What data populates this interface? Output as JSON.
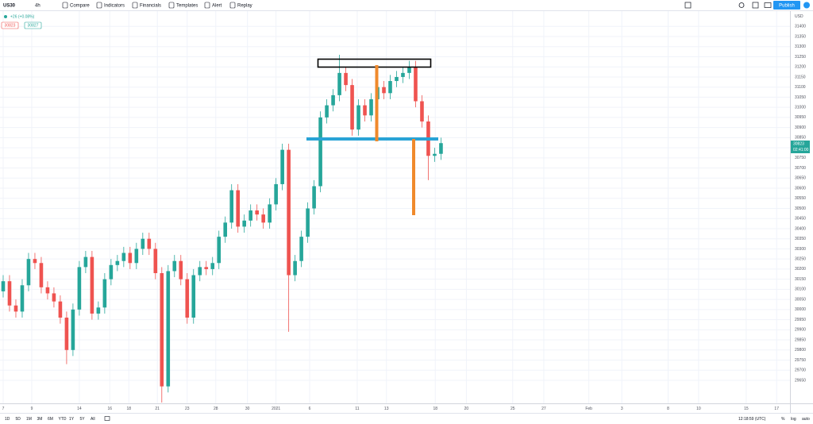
{
  "toolbar": {
    "symbol": "US30",
    "interval": "4h",
    "buttons": [
      "Compare",
      "Indicators",
      "Financials",
      "Templates",
      "Alert",
      "Replay"
    ],
    "publish": "Publish"
  },
  "legend": {
    "change": "+26 (+0.08%)",
    "bid": "30823",
    "ask": "30827"
  },
  "axis_currency": "USD",
  "price_label": "30823",
  "countdown": "02:41:00",
  "bottom_bar": {
    "ranges": [
      "1D",
      "5D",
      "1M",
      "3M",
      "6M",
      "YTD",
      "1Y",
      "5Y",
      "All"
    ],
    "time": "12:18:59 (UTC)",
    "options": [
      "%",
      "log",
      "auto"
    ]
  },
  "chart_data": {
    "type": "candlestick",
    "x": [
      0,
      1,
      2,
      3,
      4,
      5,
      6,
      7,
      8,
      9,
      10,
      11,
      12,
      13,
      14,
      15,
      16,
      17,
      18,
      19,
      20,
      21,
      22,
      23,
      24,
      25,
      26,
      27,
      28,
      29,
      30,
      31,
      32,
      33,
      34,
      35,
      36,
      37,
      38,
      39,
      40,
      41,
      42,
      43,
      44,
      45,
      46,
      47,
      48,
      49,
      50,
      51,
      52,
      53,
      54,
      55,
      56,
      57,
      58,
      59,
      60,
      61,
      62,
      63,
      64,
      65,
      66,
      67,
      68,
      69
    ],
    "open": [
      30090,
      30140,
      30020,
      29990,
      30120,
      30250,
      30230,
      30110,
      30080,
      30040,
      29960,
      29800,
      30000,
      30210,
      30260,
      29980,
      30010,
      30150,
      30220,
      30240,
      30280,
      30230,
      30300,
      30350,
      30300,
      30180,
      29620,
      30190,
      30240,
      30150,
      29960,
      30170,
      30210,
      30200,
      30230,
      30360,
      30430,
      30590,
      30410,
      30440,
      30490,
      30470,
      30430,
      30520,
      30620,
      30790,
      30170,
      30240,
      30360,
      30500,
      30610,
      30950,
      31010,
      31060,
      31170,
      31110,
      30890,
      31010,
      30960,
      31040,
      31100,
      31070,
      31130,
      31150,
      31170,
      31200,
      31030,
      30930,
      30760,
      30770
    ],
    "high": [
      30170,
      30170,
      30050,
      30150,
      30280,
      30280,
      30260,
      30140,
      30110,
      30070,
      29990,
      30030,
      30240,
      30290,
      30290,
      30040,
      30180,
      30250,
      30270,
      30310,
      30310,
      30330,
      30380,
      30380,
      30330,
      30210,
      30220,
      30270,
      30270,
      30180,
      30200,
      30240,
      30240,
      30260,
      30390,
      30460,
      30620,
      30620,
      30470,
      30520,
      30520,
      30500,
      30550,
      30650,
      30820,
      30820,
      30270,
      30390,
      30530,
      30640,
      30980,
      31040,
      31090,
      31260,
      31200,
      31140,
      31040,
      31040,
      31070,
      31130,
      31130,
      31160,
      31180,
      31200,
      31230,
      31230,
      31060,
      30960,
      30800,
      30850
    ],
    "low": [
      30060,
      29990,
      29960,
      29960,
      30090,
      30200,
      30080,
      30050,
      30010,
      29930,
      29730,
      29770,
      29970,
      30180,
      29950,
      29950,
      29980,
      30120,
      30190,
      30210,
      30200,
      30200,
      30270,
      30270,
      30150,
      29540,
      29590,
      30160,
      30120,
      29930,
      29930,
      30140,
      30170,
      30170,
      30200,
      30330,
      30400,
      30380,
      30380,
      30410,
      30440,
      30400,
      30400,
      30490,
      30590,
      29890,
      30140,
      30210,
      30330,
      30470,
      30580,
      30920,
      30980,
      31030,
      31080,
      30860,
      30860,
      30930,
      30930,
      31010,
      31040,
      31040,
      31100,
      31120,
      31140,
      31000,
      30900,
      30640,
      30730,
      30740
    ],
    "close": [
      30140,
      30020,
      29990,
      30120,
      30250,
      30230,
      30110,
      30080,
      30040,
      29960,
      29800,
      30000,
      30210,
      30260,
      29980,
      30010,
      30150,
      30220,
      30240,
      30280,
      30230,
      30300,
      30350,
      30300,
      30180,
      29620,
      30190,
      30240,
      30150,
      29960,
      30170,
      30210,
      30200,
      30230,
      30360,
      30430,
      30590,
      30410,
      30440,
      30490,
      30470,
      30430,
      30520,
      30620,
      30790,
      30170,
      30240,
      30360,
      30500,
      30610,
      30950,
      31010,
      31060,
      31170,
      31110,
      30890,
      31010,
      30960,
      31040,
      31100,
      31070,
      31130,
      31150,
      31170,
      31200,
      31030,
      30930,
      30760,
      30770,
      30823
    ],
    "up_color": "#26a69a",
    "down_color": "#ef5350",
    "grid": true,
    "xlim": [
      -0.5,
      124
    ],
    "xticks": [
      {
        "value": 0,
        "label": "7"
      },
      {
        "value": 4.5,
        "label": "9"
      },
      {
        "value": 12,
        "label": "14"
      },
      {
        "value": 16.8,
        "label": "16"
      },
      {
        "value": 19.8,
        "label": "18"
      },
      {
        "value": 24.3,
        "label": "21"
      },
      {
        "value": 29,
        "label": "23"
      },
      {
        "value": 33.5,
        "label": "28"
      },
      {
        "value": 38.5,
        "label": "30"
      },
      {
        "value": 43,
        "label": "2021"
      },
      {
        "value": 48.3,
        "label": "6"
      },
      {
        "value": 55.8,
        "label": "11"
      },
      {
        "value": 60.4,
        "label": "13"
      },
      {
        "value": 68.1,
        "label": "18"
      },
      {
        "value": 73,
        "label": "20"
      },
      {
        "value": 80.3,
        "label": "25"
      },
      {
        "value": 85.2,
        "label": "27"
      },
      {
        "value": 92.3,
        "label": "Feb"
      },
      {
        "value": 97.5,
        "label": "3"
      },
      {
        "value": 104.8,
        "label": "8"
      },
      {
        "value": 109.6,
        "label": "10"
      },
      {
        "value": 117.1,
        "label": "15"
      },
      {
        "value": 121.9,
        "label": "17"
      }
    ],
    "ylim": [
      29540,
      31460
    ],
    "yticks": [
      31400,
      31350,
      31300,
      31250,
      31200,
      31150,
      31100,
      31050,
      31000,
      30950,
      30900,
      30850,
      30800,
      30750,
      30700,
      30650,
      30600,
      30550,
      30500,
      30450,
      30400,
      30350,
      30300,
      30250,
      30200,
      30150,
      30100,
      30050,
      30000,
      29950,
      29900,
      29850,
      29800,
      29750,
      29700,
      29650
    ]
  }
}
